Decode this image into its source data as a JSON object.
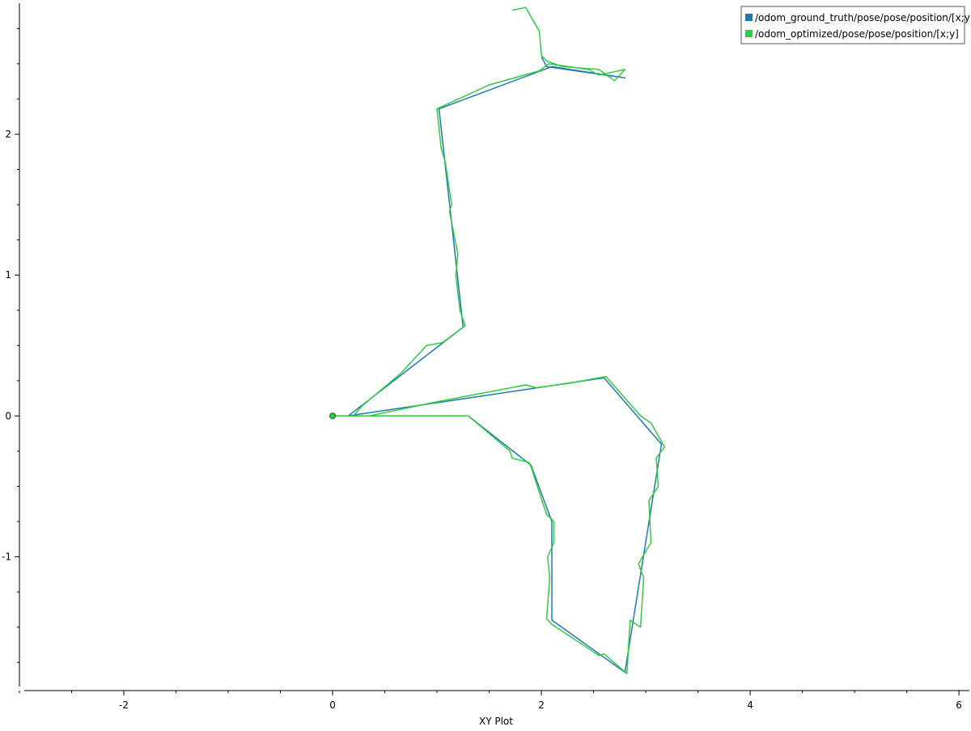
{
  "chart_data": {
    "type": "line",
    "title": "",
    "xlabel": "XY Plot",
    "ylabel": "",
    "xlim": [
      -3.0,
      6.1
    ],
    "ylim": [
      -1.95,
      2.93
    ],
    "x_ticks": [
      -2,
      0,
      2,
      4,
      6
    ],
    "x_tick_labels": [
      "-2",
      "0",
      "2",
      "4",
      "6"
    ],
    "y_ticks": [
      -1,
      0,
      1,
      2
    ],
    "y_tick_labels": [
      "-1",
      "0",
      "1",
      "2"
    ],
    "grid": false,
    "legend_position": "top-right",
    "series": [
      {
        "name": "/odom_ground_truth/pose/pose/position/[x;y]",
        "color": "#1f77b4",
        "points": [
          [
            0,
            0
          ],
          [
            1.3,
            0
          ],
          [
            1.9,
            -0.35
          ],
          [
            2.1,
            -0.75
          ],
          [
            2.1,
            -1.45
          ],
          [
            2.8,
            -1.82
          ],
          [
            3.15,
            -0.2
          ],
          [
            2.6,
            0.27
          ],
          [
            0.15,
            0
          ],
          [
            1.25,
            0.63
          ],
          [
            1.02,
            2.18
          ],
          [
            2.1,
            2.48
          ],
          [
            2.8,
            2.4
          ],
          [
            2.05,
            2.48
          ],
          [
            2.0,
            2.55
          ]
        ]
      },
      {
        "name": "/odom_optimized/pose/pose/position/[x;y]",
        "color": "#2ecc40",
        "points": [
          [
            0,
            0
          ],
          [
            1.3,
            0
          ],
          [
            1.7,
            -0.25
          ],
          [
            1.72,
            -0.3
          ],
          [
            1.88,
            -0.33
          ],
          [
            1.9,
            -0.36
          ],
          [
            2.05,
            -0.7
          ],
          [
            2.12,
            -0.75
          ],
          [
            2.12,
            -0.9
          ],
          [
            2.06,
            -1.0
          ],
          [
            2.08,
            -1.15
          ],
          [
            2.05,
            -1.44
          ],
          [
            2.1,
            -1.48
          ],
          [
            2.55,
            -1.7
          ],
          [
            2.6,
            -1.69
          ],
          [
            2.82,
            -1.83
          ],
          [
            2.85,
            -1.45
          ],
          [
            2.95,
            -1.5
          ],
          [
            2.98,
            -1.15
          ],
          [
            2.93,
            -1.05
          ],
          [
            3.05,
            -0.9
          ],
          [
            3.03,
            -0.6
          ],
          [
            3.12,
            -0.5
          ],
          [
            3.1,
            -0.3
          ],
          [
            3.18,
            -0.22
          ],
          [
            3.05,
            -0.05
          ],
          [
            2.95,
            0.0
          ],
          [
            2.62,
            0.28
          ],
          [
            2.25,
            0.23
          ],
          [
            1.95,
            0.2
          ],
          [
            1.85,
            0.22
          ],
          [
            1.0,
            0.1
          ],
          [
            0.35,
            0.0
          ],
          [
            0.2,
            0.0
          ],
          [
            0.28,
            0.07
          ],
          [
            0.65,
            0.3
          ],
          [
            0.9,
            0.5
          ],
          [
            1.05,
            0.52
          ],
          [
            1.27,
            0.64
          ],
          [
            1.22,
            0.75
          ],
          [
            1.18,
            1.0
          ],
          [
            1.2,
            1.15
          ],
          [
            1.12,
            1.45
          ],
          [
            1.14,
            1.5
          ],
          [
            1.08,
            1.8
          ],
          [
            1.04,
            1.9
          ],
          [
            1.0,
            2.18
          ],
          [
            1.5,
            2.35
          ],
          [
            1.98,
            2.45
          ],
          [
            2.07,
            2.5
          ],
          [
            2.45,
            2.46
          ],
          [
            2.55,
            2.42
          ],
          [
            2.8,
            2.46
          ],
          [
            2.7,
            2.38
          ],
          [
            2.55,
            2.46
          ],
          [
            2.2,
            2.48
          ],
          [
            2.05,
            2.52
          ],
          [
            2.0,
            2.56
          ],
          [
            1.98,
            2.73
          ],
          [
            1.85,
            2.9
          ],
          [
            1.72,
            2.88
          ]
        ]
      }
    ],
    "markers": [
      {
        "x": 0,
        "y": 0,
        "color": "#2ecc40"
      }
    ]
  }
}
